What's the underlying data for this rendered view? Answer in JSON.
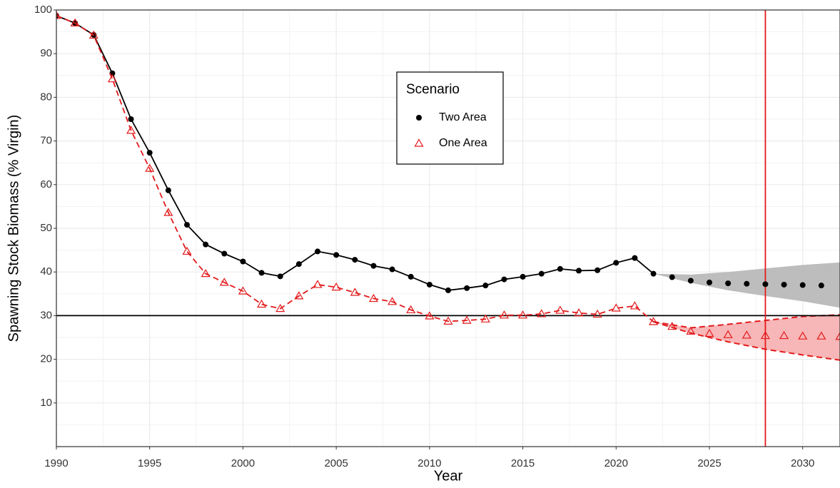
{
  "chart_data": {
    "type": "line",
    "x_label": "Year",
    "y_label": "Spawning Stock Biomass (% Virgin)",
    "xlim": [
      1990,
      2032
    ],
    "xticks": [
      1990,
      1995,
      2000,
      2005,
      2010,
      2015,
      2020,
      2025,
      2030
    ],
    "ylim": [
      0,
      100
    ],
    "yticks": [
      10,
      20,
      30,
      40,
      50,
      60,
      70,
      80,
      90,
      100
    ],
    "grid": true,
    "hline": 30,
    "hline_color": "#000000",
    "vline": 2028,
    "vline_color": "#e31a1c",
    "legend_title": "Scenario",
    "legend_position": "top",
    "series": [
      {
        "name": "Two Area",
        "color": "#000000",
        "marker": "circle",
        "line_style": "solid",
        "line_through": 2022,
        "x": [
          1990,
          1991,
          1992,
          1993,
          1994,
          1995,
          1996,
          1997,
          1998,
          1999,
          2000,
          2001,
          2002,
          2003,
          2004,
          2005,
          2006,
          2007,
          2008,
          2009,
          2010,
          2011,
          2012,
          2013,
          2014,
          2015,
          2016,
          2017,
          2018,
          2019,
          2020,
          2021,
          2022,
          2023,
          2024,
          2025,
          2026,
          2027,
          2028,
          2029,
          2030,
          2031
        ],
        "values": [
          98.7,
          97,
          94.3,
          85.5,
          75,
          67.3,
          58.7,
          50.8,
          46.3,
          44.2,
          42.4,
          39.8,
          39,
          41.8,
          44.7,
          43.9,
          42.8,
          41.4,
          40.6,
          38.9,
          37.1,
          35.8,
          36.3,
          36.9,
          38.3,
          38.9,
          39.6,
          40.7,
          40.3,
          40.4,
          42.1,
          43.2,
          39.6,
          38.8,
          38,
          37.6,
          37.4,
          37.3,
          37.2,
          37.1,
          37,
          36.9
        ],
        "band": {
          "color": "#bdbdbd",
          "outline": false,
          "x": [
            2022,
            2024,
            2026,
            2028,
            2030,
            2032
          ],
          "upper": [
            39.6,
            39.4,
            40,
            40.8,
            41.6,
            42.2
          ],
          "lower": [
            39.6,
            37.5,
            35.8,
            34.5,
            33.3,
            31.8
          ]
        }
      },
      {
        "name": "One Area",
        "color": "#e31a1c",
        "marker": "triangle",
        "line_style": "dashed",
        "line_through": 2022,
        "x": [
          1990,
          1991,
          1992,
          1993,
          1994,
          1995,
          1996,
          1997,
          1998,
          1999,
          2000,
          2001,
          2002,
          2003,
          2004,
          2005,
          2006,
          2007,
          2008,
          2009,
          2010,
          2011,
          2012,
          2013,
          2014,
          2015,
          2016,
          2017,
          2018,
          2019,
          2020,
          2021,
          2022,
          2023,
          2024,
          2025,
          2026,
          2027,
          2028,
          2029,
          2030,
          2031,
          2032
        ],
        "values": [
          98.7,
          97,
          94.2,
          84.2,
          72.4,
          63.7,
          53.6,
          44.7,
          39.6,
          37.6,
          35.6,
          32.6,
          31.6,
          34.5,
          37.1,
          36.5,
          35.3,
          33.9,
          33.2,
          31.3,
          29.9,
          28.7,
          28.9,
          29.2,
          30.1,
          30.1,
          30.4,
          31.2,
          30.6,
          30.3,
          31.7,
          32.2,
          28.6,
          27.5,
          26.4,
          25.9,
          25.6,
          25.5,
          25.4,
          25.4,
          25.3,
          25.3,
          25.2
        ],
        "band": {
          "color": "#f7b6b7",
          "outline": true,
          "x": [
            2022,
            2024,
            2026,
            2028,
            2030,
            2032
          ],
          "upper": [
            28.6,
            27.2,
            28,
            28.9,
            29.8,
            30.2
          ],
          "lower": [
            28.6,
            26,
            24,
            22.3,
            21,
            19.8
          ]
        }
      }
    ]
  }
}
